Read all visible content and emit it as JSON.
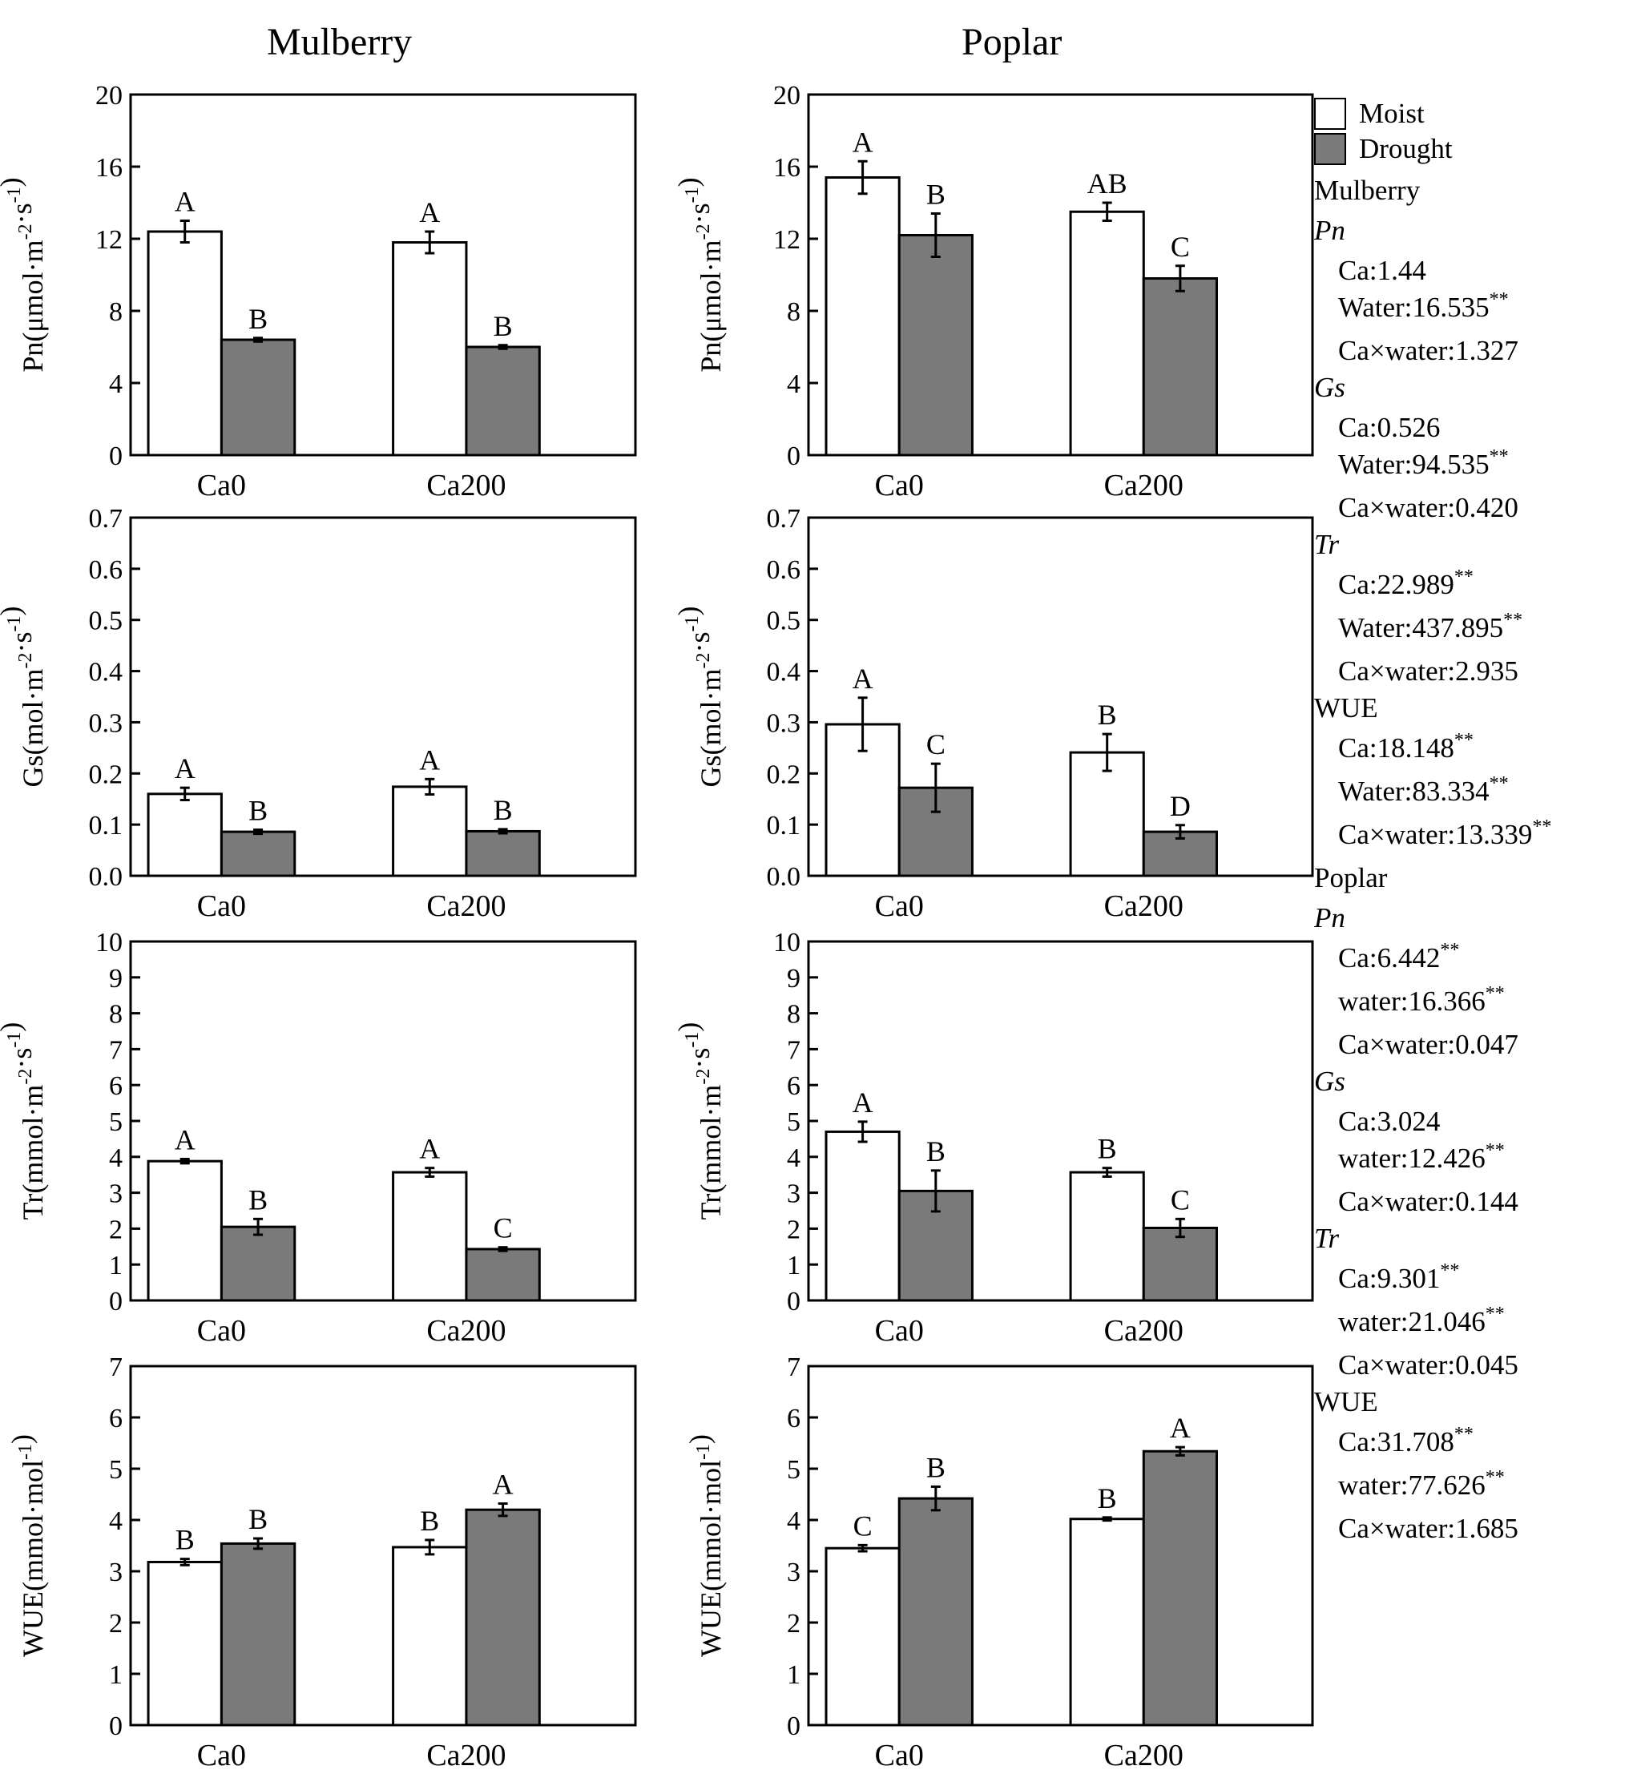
{
  "columns": [
    "Mulberry",
    "Poplar"
  ],
  "colors": {
    "moist": "#ffffff",
    "drought": "#7a7a7a",
    "axis": "#000000"
  },
  "legend": [
    {
      "label": "Moist",
      "color": "#ffffff"
    },
    {
      "label": "Drought",
      "color": "#7a7a7a"
    }
  ],
  "stats": [
    {
      "species": "Mulberry",
      "groups": [
        {
          "var": "Pn",
          "italic": true,
          "lines": [
            {
              "text": "Ca:1.44",
              "sig": ""
            },
            {
              "text": "Water:16.535",
              "sig": "**"
            },
            {
              "text": "Ca×water:1.327",
              "sig": ""
            }
          ]
        },
        {
          "var": "Gs",
          "italic": true,
          "lines": [
            {
              "text": "Ca:0.526",
              "sig": ""
            },
            {
              "text": "Water:94.535",
              "sig": "**"
            },
            {
              "text": "Ca×water:0.420",
              "sig": ""
            }
          ]
        },
        {
          "var": "Tr",
          "italic": true,
          "lines": [
            {
              "text": "Ca:22.989",
              "sig": "**"
            },
            {
              "text": "Water:437.895",
              "sig": "**"
            },
            {
              "text": "Ca×water:2.935",
              "sig": ""
            }
          ]
        },
        {
          "var": "WUE",
          "italic": false,
          "lines": [
            {
              "text": "Ca:18.148",
              "sig": "**"
            },
            {
              "text": "Water:83.334",
              "sig": "**"
            },
            {
              "text": "Ca×water:13.339",
              "sig": "**"
            }
          ]
        }
      ]
    },
    {
      "species": "Poplar",
      "groups": [
        {
          "var": "Pn",
          "italic": true,
          "lines": [
            {
              "text": "Ca:6.442",
              "sig": "**"
            },
            {
              "text": "water:16.366",
              "sig": "**"
            },
            {
              "text": "Ca×water:0.047",
              "sig": ""
            }
          ]
        },
        {
          "var": "Gs",
          "italic": true,
          "lines": [
            {
              "text": "Ca:3.024",
              "sig": ""
            },
            {
              "text": "water:12.426",
              "sig": "**"
            },
            {
              "text": "Ca×water:0.144",
              "sig": ""
            }
          ]
        },
        {
          "var": "Tr",
          "italic": true,
          "lines": [
            {
              "text": "Ca:9.301",
              "sig": "**"
            },
            {
              "text": "water:21.046",
              "sig": "**"
            },
            {
              "text": "Ca×water:0.045",
              "sig": ""
            }
          ]
        },
        {
          "var": "WUE",
          "italic": false,
          "lines": [
            {
              "text": "Ca:31.708",
              "sig": "**"
            },
            {
              "text": "water:77.626",
              "sig": "**"
            },
            {
              "text": "Ca×water:1.685",
              "sig": ""
            }
          ]
        }
      ]
    }
  ],
  "chart_data": [
    {
      "type": "bar",
      "panel": "mulberry-pn",
      "categories": [
        "Ca0",
        "Ca200"
      ],
      "ylabel": "Pn(μmol·m-2·s-1)",
      "ylim": [
        0,
        20
      ],
      "yticks": [
        0,
        4,
        8,
        12,
        16,
        20
      ],
      "series": [
        {
          "name": "Moist",
          "values": [
            12.4,
            11.8
          ],
          "errors": [
            0.6,
            0.6
          ],
          "letters": [
            "A",
            "A"
          ]
        },
        {
          "name": "Drought",
          "values": [
            6.4,
            6.0
          ],
          "errors": [
            0.1,
            0.1
          ],
          "letters": [
            "B",
            "B"
          ]
        }
      ]
    },
    {
      "type": "bar",
      "panel": "poplar-pn",
      "categories": [
        "Ca0",
        "Ca200"
      ],
      "ylabel": "Pn(μmol·m-2·s-1)",
      "ylim": [
        0,
        20
      ],
      "yticks": [
        0,
        4,
        8,
        12,
        16,
        20
      ],
      "series": [
        {
          "name": "Moist",
          "values": [
            15.4,
            13.5
          ],
          "errors": [
            0.9,
            0.5
          ],
          "letters": [
            "A",
            "AB"
          ]
        },
        {
          "name": "Drought",
          "values": [
            12.2,
            9.8
          ],
          "errors": [
            1.2,
            0.7
          ],
          "letters": [
            "B",
            "C"
          ]
        }
      ]
    },
    {
      "type": "bar",
      "panel": "mulberry-gs",
      "categories": [
        "Ca0",
        "Ca200"
      ],
      "ylabel": "Gs(mol·m-2·s-1)",
      "ylim": [
        0,
        0.7
      ],
      "yticks": [
        "0.0",
        "0.1",
        "0.2",
        "0.3",
        "0.4",
        "0.5",
        "0.6",
        "0.7"
      ],
      "series": [
        {
          "name": "Moist",
          "values": [
            0.16,
            0.174
          ],
          "errors": [
            0.012,
            0.015
          ],
          "letters": [
            "A",
            "A"
          ]
        },
        {
          "name": "Drought",
          "values": [
            0.086,
            0.087
          ],
          "errors": [
            0.004,
            0.004
          ],
          "letters": [
            "B",
            "B"
          ]
        }
      ]
    },
    {
      "type": "bar",
      "panel": "poplar-gs",
      "categories": [
        "Ca0",
        "Ca200"
      ],
      "ylabel": "Gs(mol·m-2·s-1)",
      "ylim": [
        0,
        0.7
      ],
      "yticks": [
        "0.0",
        "0.1",
        "0.2",
        "0.3",
        "0.4",
        "0.5",
        "0.6",
        "0.7"
      ],
      "series": [
        {
          "name": "Moist",
          "values": [
            0.296,
            0.241
          ],
          "errors": [
            0.052,
            0.036
          ],
          "letters": [
            "A",
            "B"
          ]
        },
        {
          "name": "Drought",
          "values": [
            0.172,
            0.086
          ],
          "errors": [
            0.047,
            0.013
          ],
          "letters": [
            "C",
            "D"
          ]
        }
      ]
    },
    {
      "type": "bar",
      "panel": "mulberry-tr",
      "categories": [
        "Ca0",
        "Ca200"
      ],
      "ylabel": "Tr(mmol·m-2·s-1)",
      "ylim": [
        0,
        10
      ],
      "yticks": [
        0,
        1,
        2,
        3,
        4,
        5,
        6,
        7,
        8,
        9,
        10
      ],
      "series": [
        {
          "name": "Moist",
          "values": [
            3.88,
            3.57
          ],
          "errors": [
            0.06,
            0.12
          ],
          "letters": [
            "A",
            "A"
          ]
        },
        {
          "name": "Drought",
          "values": [
            2.05,
            1.43
          ],
          "errors": [
            0.22,
            0.05
          ],
          "letters": [
            "B",
            "C"
          ]
        }
      ]
    },
    {
      "type": "bar",
      "panel": "poplar-tr",
      "categories": [
        "Ca0",
        "Ca200"
      ],
      "ylabel": "Tr(mmol·m-2·s-1)",
      "ylim": [
        0,
        10
      ],
      "yticks": [
        0,
        1,
        2,
        3,
        4,
        5,
        6,
        7,
        8,
        9,
        10
      ],
      "series": [
        {
          "name": "Moist",
          "values": [
            4.7,
            3.57
          ],
          "errors": [
            0.28,
            0.12
          ],
          "letters": [
            "A",
            "B"
          ]
        },
        {
          "name": "Drought",
          "values": [
            3.05,
            2.02
          ],
          "errors": [
            0.57,
            0.25
          ],
          "letters": [
            "B",
            "C"
          ]
        }
      ]
    },
    {
      "type": "bar",
      "panel": "mulberry-wue",
      "categories": [
        "Ca0",
        "Ca200"
      ],
      "ylabel": "WUE(mmol·mol-1)",
      "ylim": [
        0,
        7
      ],
      "yticks": [
        0,
        1,
        2,
        3,
        4,
        5,
        6,
        7
      ],
      "series": [
        {
          "name": "Moist",
          "values": [
            3.18,
            3.47
          ],
          "errors": [
            0.06,
            0.14
          ],
          "letters": [
            "B",
            "B"
          ]
        },
        {
          "name": "Drought",
          "values": [
            3.54,
            4.2
          ],
          "errors": [
            0.1,
            0.12
          ],
          "letters": [
            "B",
            "A"
          ]
        }
      ]
    },
    {
      "type": "bar",
      "panel": "poplar-wue",
      "categories": [
        "Ca0",
        "Ca200"
      ],
      "ylabel": "WUE(mmol·mol-1)",
      "ylim": [
        0,
        7
      ],
      "yticks": [
        0,
        1,
        2,
        3,
        4,
        5,
        6,
        7
      ],
      "series": [
        {
          "name": "Moist",
          "values": [
            3.45,
            4.02
          ],
          "errors": [
            0.06,
            0.03
          ],
          "letters": [
            "C",
            "B"
          ]
        },
        {
          "name": "Drought",
          "values": [
            4.42,
            5.34
          ],
          "errors": [
            0.23,
            0.08
          ],
          "letters": [
            "B",
            "A"
          ]
        }
      ]
    }
  ]
}
